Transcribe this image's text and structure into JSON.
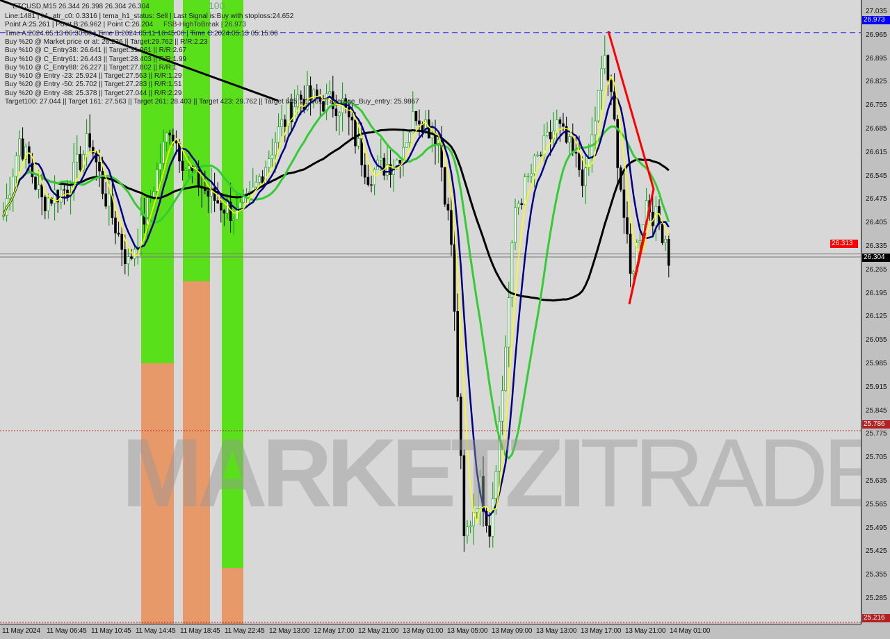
{
  "header": {
    "symbol_line": "ETCUSD,M15  26.344 26.398 26.304 26.304",
    "lines": [
      "Line:1481 | h1_atr_c0: 0.3316 | tema_h1_status: Sell | Last Signal is:Buy with stoploss:24.652",
      "Point A:25.261 | Point B:26.962 | Point C:26.204",
      "Time A:2024.05.13 06:30:00 | Time B:2024.05.11 16:45:00 | Time C:2024.05.13 05:15:00",
      "Buy %20 @ Market price or at: 26.236 || Target:29.762 || R/R:2.23",
      "Buy %10 @ C_Entry38: 26.641 || Target:31.961 || R/R:2.67",
      "Buy %10 @ C_Entry61: 26.443 || Target:28.403 || R/R:1.99",
      "Buy %10 @ C_Entry88: 26.227 || Target:27.802 || R/R:1",
      "Buy %10 @ Entry -23: 25.924 || Target:27.563 || R/R:1.29",
      "Buy %20 @ Entry -50: 25.702 || Target:27.283 || R/R:1.51",
      "Buy %20 @ Entry -88: 25.378 || Target:27.044 || R/R:2.29",
      "Target100: 27.044 || Target 161: 27.563 || Target 261: 28.403 || Target 423: 29.762 || Target 685: 31.961 || average_Buy_entry: 25.9867"
    ],
    "fsb_label": "FSB-HighToBreak | 26.973",
    "label_100": "100"
  },
  "watermark": {
    "bold": "MARKETZI",
    "light": "TRADE"
  },
  "colors": {
    "up": "#00a000",
    "down": "#000000",
    "ma_slow": "#000000",
    "ma_green": "#33cc33",
    "ma_navy": "#000080",
    "ma_yellow": "#ffff00",
    "blue_level": "#0000ff",
    "red_level": "#b22222",
    "zone_green": "#5ae01a",
    "zone_orange": "#e8996a"
  },
  "chart_data": {
    "type": "candlestick",
    "ylim": [
      25.216,
      27.05
    ],
    "yticks": [
      "27.035",
      "26.965",
      "26.895",
      "26.825",
      "26.755",
      "26.685",
      "26.615",
      "26.545",
      "26.475",
      "26.405",
      "26.335",
      "26.265",
      "26.195",
      "26.125",
      "26.055",
      "25.985",
      "25.915",
      "25.845",
      "25.775",
      "25.705",
      "25.635",
      "25.565",
      "25.495",
      "25.425",
      "25.355",
      "25.285"
    ],
    "xticks": [
      "11 May 2024",
      "11 May 06:45",
      "11 May 10:45",
      "11 May 14:45",
      "11 May 18:45",
      "11 May 22:45",
      "12 May 13:00",
      "12 May 17:00",
      "12 May 21:00",
      "13 May 01:00",
      "13 May 05:00",
      "13 May 09:00",
      "13 May 13:00",
      "13 May 17:00",
      "13 May 21:00",
      "14 May 01:00"
    ],
    "close_keypoints": [
      [
        0,
        26.428
      ],
      [
        5,
        26.656
      ],
      [
        12,
        26.47
      ],
      [
        20,
        26.51
      ],
      [
        27,
        26.656
      ],
      [
        31,
        26.51
      ],
      [
        39,
        26.283
      ],
      [
        45,
        26.45
      ],
      [
        52,
        26.697
      ],
      [
        57,
        26.573
      ],
      [
        64,
        26.49
      ],
      [
        73,
        26.428
      ],
      [
        77,
        26.47
      ],
      [
        86,
        26.677
      ],
      [
        92,
        26.78
      ],
      [
        106,
        26.76
      ],
      [
        114,
        26.553
      ],
      [
        123,
        26.594
      ],
      [
        129,
        26.739
      ],
      [
        136,
        26.656
      ],
      [
        140,
        26.345
      ],
      [
        144,
        25.455
      ],
      [
        149,
        25.62
      ],
      [
        152,
        25.496
      ],
      [
        156,
        25.91
      ],
      [
        160,
        26.449
      ],
      [
        167,
        26.594
      ],
      [
        173,
        26.697
      ],
      [
        182,
        26.532
      ],
      [
        188,
        26.905
      ],
      [
        191,
        26.697
      ],
      [
        196,
        26.242
      ],
      [
        201,
        26.47
      ],
      [
        207,
        26.366
      ],
      [
        208,
        26.304
      ]
    ],
    "levels": [
      {
        "label": "26.973",
        "price": 26.973,
        "color": "#0000ff",
        "style": "dashed"
      },
      {
        "label": "25.786",
        "price": 25.786,
        "color": "#b22222",
        "style": "dotted"
      },
      {
        "label": "25.216",
        "price": 25.216,
        "color": "#b22222",
        "style": "dotted"
      },
      {
        "label": "26.304",
        "price": 26.304,
        "color": "#000000",
        "style": "solid"
      }
    ],
    "last_price": "26.304",
    "bid_tag": "26.313"
  }
}
